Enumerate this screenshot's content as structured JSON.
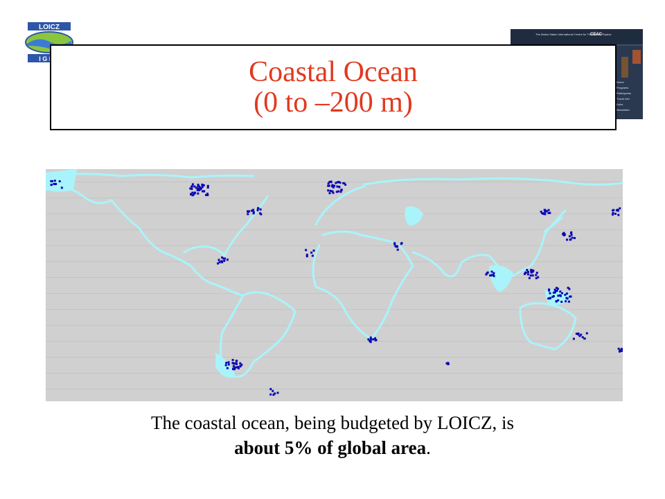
{
  "logo": {
    "top_text": "LOICZ",
    "bottom_text": "I G B P",
    "colors": {
      "blue": "#2d56a8",
      "green": "#8bc53f",
      "sea": "#3a7bd5"
    }
  },
  "thumbnail": {
    "header_left": "The Abdus Salam International Centre for Theoretical Physics",
    "header_right": "CEAC",
    "menu_items": [
      "Home",
      "Programs",
      "Participants",
      "Travel Info",
      "Links",
      "Newsletter"
    ]
  },
  "title": {
    "line1": "Coastal Ocean",
    "line2": "(0 to –200 m)",
    "color": "#e03a1e"
  },
  "map": {
    "colors": {
      "land": "#d0d0d0",
      "shelf_light": "#a9f4fb",
      "shelf_dark": "#0a06b3"
    }
  },
  "caption": {
    "line1": "The coastal ocean, being budgeted by LOICZ, is",
    "line2_bold": "about 5% of global area",
    "line2_end": "."
  }
}
